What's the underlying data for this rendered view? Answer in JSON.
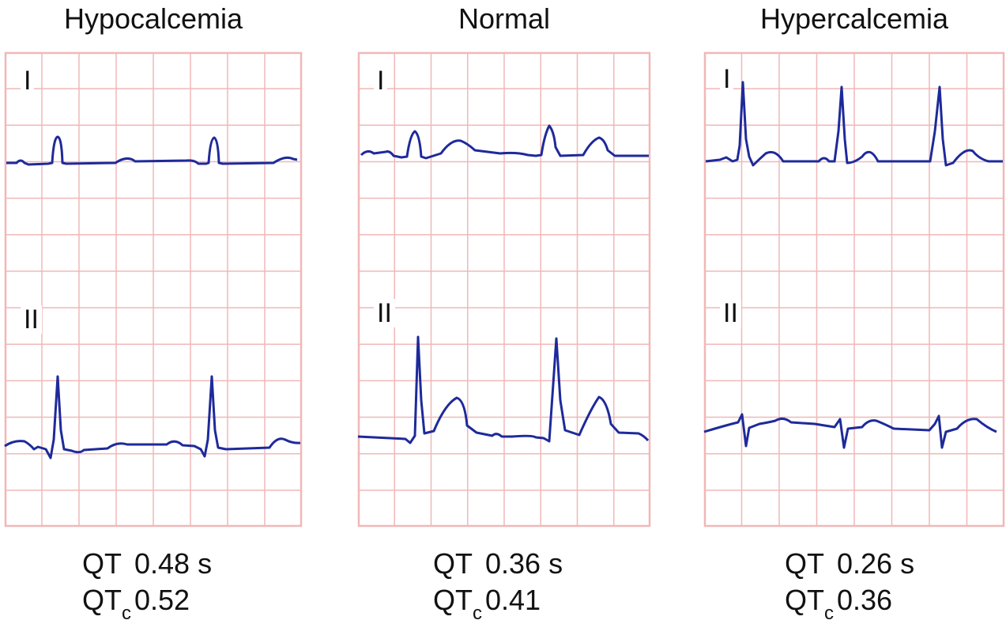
{
  "colors": {
    "grid": "#f0b8b8",
    "trace": "#1e2a9a"
  },
  "lead_label_I": "I",
  "lead_label_II": "II",
  "panels": [
    {
      "title": "Hypocalcemia",
      "qt_label": "QT",
      "qt_value": "0.48 s",
      "qtc_label": "QT",
      "qtc_sub": "c",
      "qtc_value": "0.52"
    },
    {
      "title": "Normal",
      "qt_label": "QT",
      "qt_value": "0.36 s",
      "qtc_label": "QT",
      "qtc_sub": "c",
      "qtc_value": "0.41"
    },
    {
      "title": "Hypercalcemia",
      "qt_label": "QT",
      "qt_value": "0.26 s",
      "qtc_label": "QT",
      "qtc_sub": "c",
      "qtc_value": "0.36"
    }
  ]
}
